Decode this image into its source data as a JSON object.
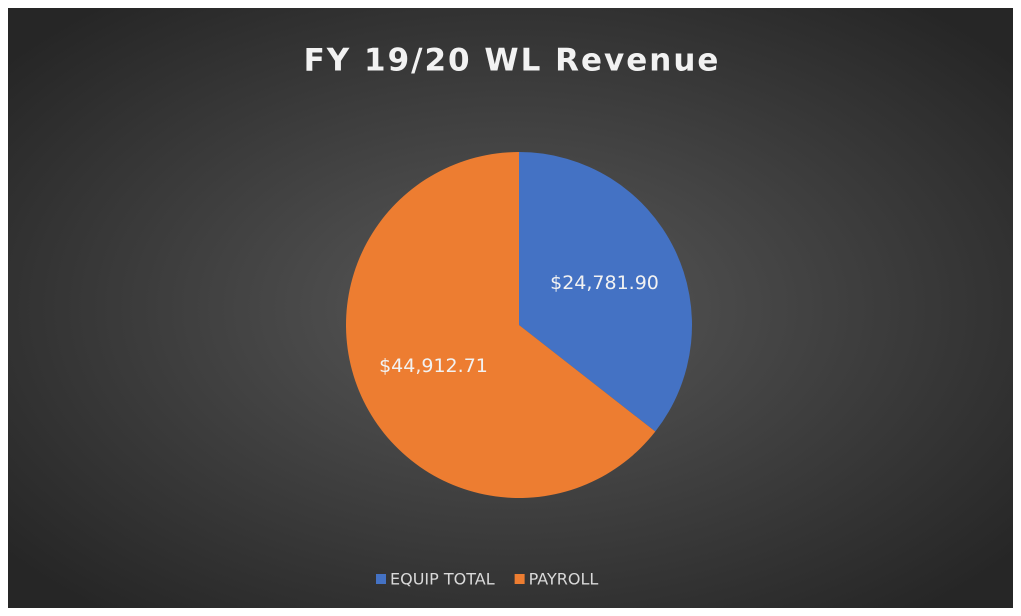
{
  "chart_data": {
    "type": "pie",
    "title": "FY 19/20 WL Revenue",
    "categories": [
      "EQUIP TOTAL",
      "PAYROLL"
    ],
    "values": [
      24781.9,
      44912.71
    ],
    "value_labels": [
      "$24,781.90",
      "$44,912.71"
    ],
    "colors": [
      "#4472c4",
      "#ed7d31"
    ],
    "legend": "bottom"
  }
}
